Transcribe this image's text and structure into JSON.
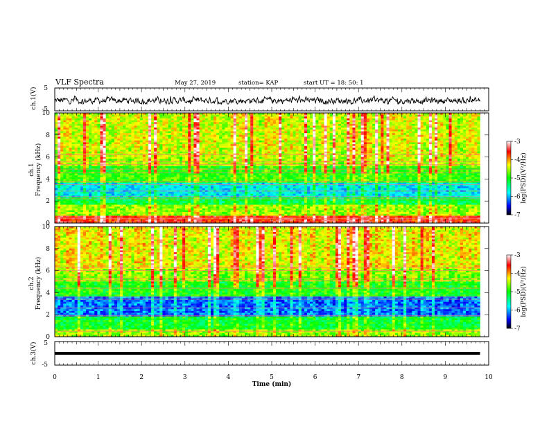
{
  "header": {
    "title": "VLF Spectra",
    "date": "May 27, 2019",
    "station": "station= KAP",
    "start": "start  UT =   18: 50: 1"
  },
  "chart_data": [
    {
      "type": "line",
      "name": "ch1-waveform",
      "ylabel": "ch.1(V)",
      "ylim": [
        -5,
        5
      ],
      "yticks": [
        "5",
        "-5"
      ],
      "xlim": [
        0,
        10
      ],
      "x_data_extent": [
        0,
        9.8
      ],
      "noise_range": [
        -2,
        1.5
      ],
      "colors": {
        "line": "#000000"
      }
    },
    {
      "type": "heatmap",
      "name": "ch1-spectrogram",
      "ylabel": "ch.1\nFrequency (kHz)",
      "ylabel_line1": "ch.1",
      "ylabel_line2": "Frequency (kHz)",
      "ylim": [
        0,
        10
      ],
      "yticks": [
        "0",
        "2",
        "4",
        "6",
        "8",
        "10"
      ],
      "xlim": [
        0,
        10
      ],
      "x_data_extent": [
        0,
        9.8
      ],
      "colorbar": {
        "label": "log(PSD)(V²/Hz)",
        "range": [
          -7,
          -3
        ],
        "ticks": [
          "-3",
          "-4",
          "-5",
          "-6",
          "-7"
        ],
        "colormap": "rainbow (black-blue-cyan-green-yellow-red-white)"
      },
      "bands_khz": [
        {
          "range": [
            0,
            0.6
          ],
          "level": -3.6
        },
        {
          "range": [
            0.6,
            1.6
          ],
          "level": -4.6
        },
        {
          "range": [
            1.6,
            2.4
          ],
          "level": -5.2
        },
        {
          "range": [
            2.4,
            3.6
          ],
          "level": -5.8
        },
        {
          "range": [
            3.6,
            5.2
          ],
          "level": -4.9
        },
        {
          "range": [
            5.2,
            6.0
          ],
          "level": -4.5
        },
        {
          "range": [
            6.0,
            10.0
          ],
          "level": -4.4
        }
      ],
      "lines_khz": [
        0.4,
        2.2,
        2.4,
        2.9,
        3.5,
        3.8,
        4.6,
        4.9,
        5.3,
        5.6,
        6.2
      ]
    },
    {
      "type": "heatmap",
      "name": "ch2-spectrogram",
      "ylabel": "ch.2\nFrequency (kHz)",
      "ylabel_line1": "ch.2",
      "ylabel_line2": "Frequency (kHz)",
      "ylim": [
        0,
        10
      ],
      "yticks": [
        "0",
        "2",
        "4",
        "6",
        "8",
        "10"
      ],
      "xlim": [
        0,
        10
      ],
      "x_data_extent": [
        0,
        9.8
      ],
      "colorbar": {
        "label": "log(PSD)(V²/Hz)",
        "range": [
          -7,
          -3
        ],
        "ticks": [
          "-3",
          "-4",
          "-5",
          "-6",
          "-7"
        ],
        "colormap": "rainbow (black-blue-cyan-green-yellow-red-white)"
      },
      "bands_khz": [
        {
          "range": [
            0,
            0.6
          ],
          "level": -4.6
        },
        {
          "range": [
            0.6,
            1.8
          ],
          "level": -5.1
        },
        {
          "range": [
            1.8,
            3.6
          ],
          "level": -6.2
        },
        {
          "range": [
            3.6,
            5.0
          ],
          "level": -5.0
        },
        {
          "range": [
            5.0,
            6.2
          ],
          "level": -4.6
        },
        {
          "range": [
            6.2,
            10.0
          ],
          "level": -4.3
        }
      ],
      "lines_khz": [
        0.5,
        1.9,
        2.6,
        3.4,
        3.6,
        4.4,
        5.1,
        5.3,
        6.0,
        6.3
      ]
    },
    {
      "type": "line",
      "name": "ch3-waveform",
      "ylabel": "ch.3(V)",
      "ylim": [
        -5,
        5
      ],
      "yticks": [
        "5",
        "-5"
      ],
      "xlim": [
        0,
        10
      ],
      "x_data_extent": [
        0,
        9.8
      ],
      "value": 0,
      "colors": {
        "line": "#000000"
      }
    }
  ],
  "x_axis": {
    "label": "Time  (min)",
    "ticks": [
      "0",
      "1",
      "2",
      "3",
      "4",
      "5",
      "6",
      "7",
      "8",
      "9",
      "10"
    ]
  }
}
